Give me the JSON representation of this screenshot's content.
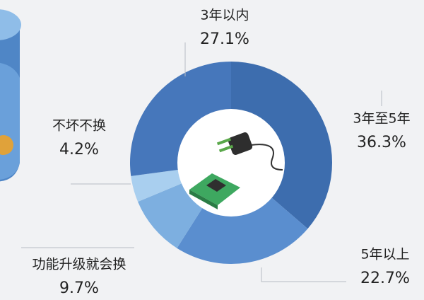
{
  "chart_data": {
    "type": "donut",
    "categories": [
      "3年至5年",
      "5年以上",
      "功能升级就会换",
      "不坏不换",
      "3年以内"
    ],
    "values": [
      36.3,
      22.7,
      9.7,
      4.2,
      27.1
    ],
    "value_labels": [
      "36.3%",
      "22.7%",
      "9.7%",
      "4.2%",
      "27.1%"
    ],
    "colors": [
      "#3d6dae",
      "#5a8ecf",
      "#7dafe0",
      "#a9cfef",
      "#4677bb"
    ]
  }
}
